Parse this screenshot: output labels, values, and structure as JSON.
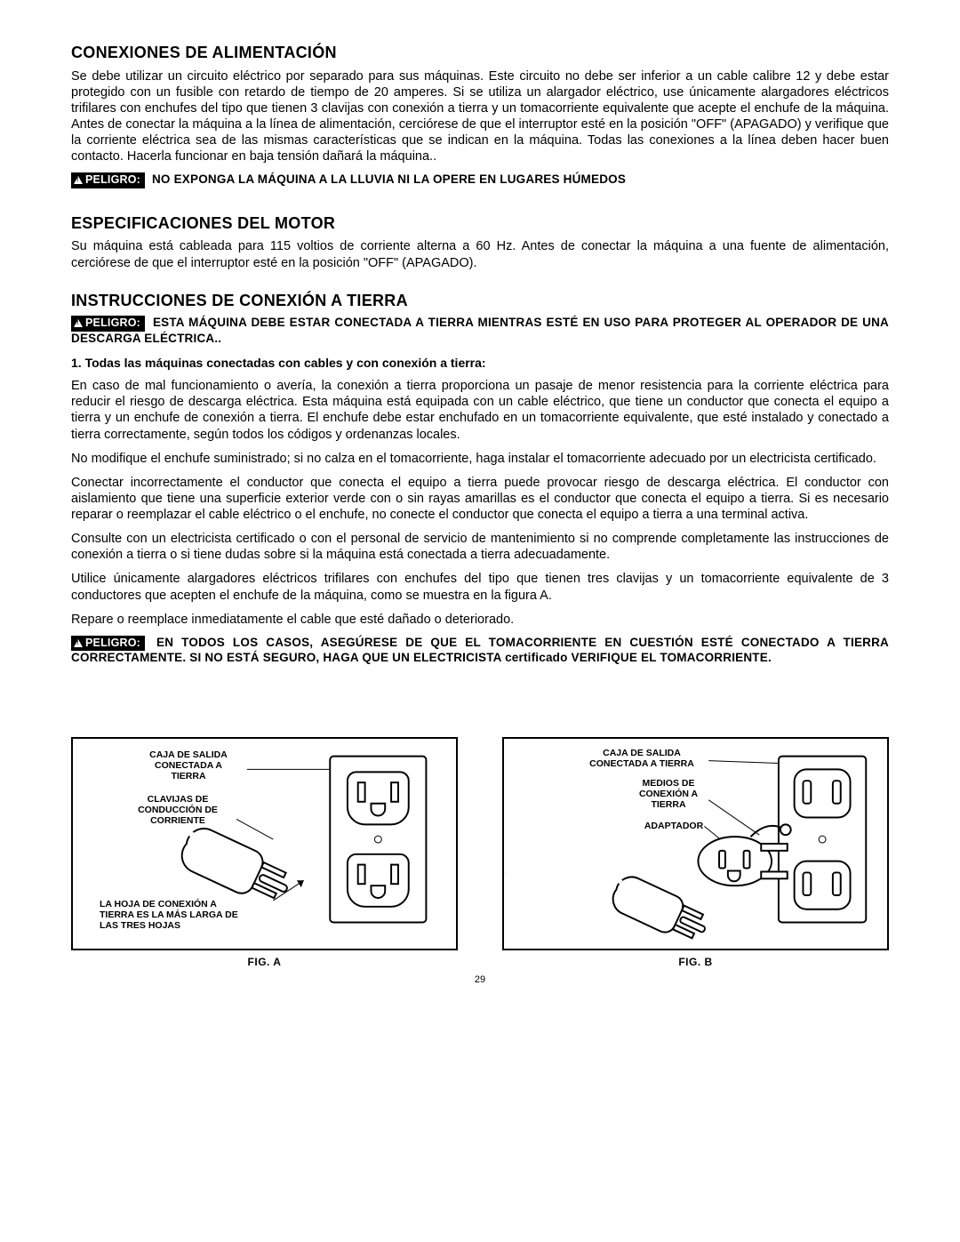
{
  "section1": {
    "heading": "CONEXIONES DE ALIMENTACIÓN",
    "body": "Se debe utilizar un circuito eléctrico por separado para sus máquinas. Este circuito no debe ser inferior a un cable calibre 12 y debe estar protegido con un fusible con retardo de tiempo de 20 amperes. Si se utiliza un alargador eléctrico, use únicamente alargadores eléctricos trifilares con enchufes del tipo que tienen 3 clavijas con conexión a tierra y un tomacorriente equivalente que acepte el enchufe de la máquina. Antes de conectar la máquina a la línea de alimentación, cerciórese de que el interruptor esté en la posición \"OFF\" (APAGADO) y verifique que la corriente eléctrica sea de las mismas características que se indican en la máquina. Todas las conexiones a la línea deben hacer buen contacto. Hacerla funcionar en baja tensión dañará la máquina..",
    "danger_label": "PELIGRO:",
    "danger_text": "NO EXPONGA LA MÁQUINA A LA LLUVIA NI LA OPERE EN LUGARES HÚMEDOS"
  },
  "section2": {
    "heading": "ESPECIFICACIONES DEL MOTOR",
    "body": "Su máquina está cableada para 115 voltios de corriente alterna a 60 Hz. Antes de conectar la máquina a una fuente de alimentación, cerciórese de que el interruptor esté en la posición \"OFF\" (APAGADO)."
  },
  "section3": {
    "heading": "INSTRUCCIONES DE CONEXIÓN A TIERRA",
    "danger1_label": "PELIGRO:",
    "danger1_text": "ESTA MÁQUINA DEBE ESTAR CONECTADA A TIERRA MIENTRAS ESTÉ EN USO PARA PROTEGER AL OPERADOR DE UNA DESCARGA ELÉCTRICA..",
    "sub1": "1.  Todas las máquinas conectadas con cables y con conexión a tierra:",
    "p1": "En caso de mal funcionamiento o avería, la conexión a tierra proporciona un pasaje de menor resistencia para la corriente eléctrica para reducir el riesgo de descarga eléctrica. Esta máquina está equipada con un cable eléctrico, que tiene un conductor que conecta el equipo a tierra y un enchufe de conexión a tierra. El enchufe debe estar enchufado en un tomacorriente equivalente, que esté instalado y conectado a tierra correctamente, según todos los códigos y ordenanzas locales.",
    "p2": "No modifique el enchufe suministrado; si no calza en el tomacorriente, haga instalar el tomacorriente adecuado por un electricista certificado.",
    "p3": "Conectar incorrectamente el conductor que conecta el equipo a tierra puede provocar riesgo de descarga eléctrica. El conductor con aislamiento que tiene una superficie exterior verde con o sin rayas amarillas es el conductor que conecta el equipo a tierra. Si es necesario reparar o reemplazar el cable eléctrico o el enchufe, no conecte el conductor que conecta el equipo a tierra a una terminal activa.",
    "p4": "Consulte con un electricista certificado o con el personal de servicio de mantenimiento si no comprende completamente las instrucciones de conexión a tierra o si tiene dudas sobre si la máquina está conectada a tierra adecuadamente.",
    "p5": "Utilice únicamente alargadores eléctricos trifilares con enchufes del tipo que tienen tres clavijas y un tomacorriente equivalente de 3 conductores que acepten el enchufe de la máquina, como se muestra en la figura A.",
    "p6": "Repare o reemplace inmediatamente el cable que esté dañado o deteriorado.",
    "danger2_label": "PELIGRO:",
    "danger2_text": "EN TODOS LOS CASOS, ASEGÚRESE DE QUE EL TOMACORRIENTE EN CUESTIÓN ESTÉ CONECTADO A TIERRA CORRECTAMENTE. SI NO ESTÁ SEGURO, HAGA QUE UN ELECTRICISTA certificado VERIFIQUE EL TOMACORRIENTE."
  },
  "figA": {
    "caption": "FIG. A",
    "label1": "CAJA DE SALIDA\nCONECTADA A\nTIERRA",
    "label2": "CLAVIJAS DE\nCONDUCCIÓN DE\nCORRIENTE",
    "label3": "LA HOJA DE CONEXIÓN A\nTIERRA ES LA MÁS LARGA DE\nLAS TRES HOJAS"
  },
  "figB": {
    "caption": "FIG. B",
    "label1": "CAJA DE SALIDA\nCONECTADA A TIERRA",
    "label2": "MEDIOS DE\nCONEXIÓN A\nTIERRA",
    "label3": "ADAPTADOR"
  },
  "page_number": "29"
}
